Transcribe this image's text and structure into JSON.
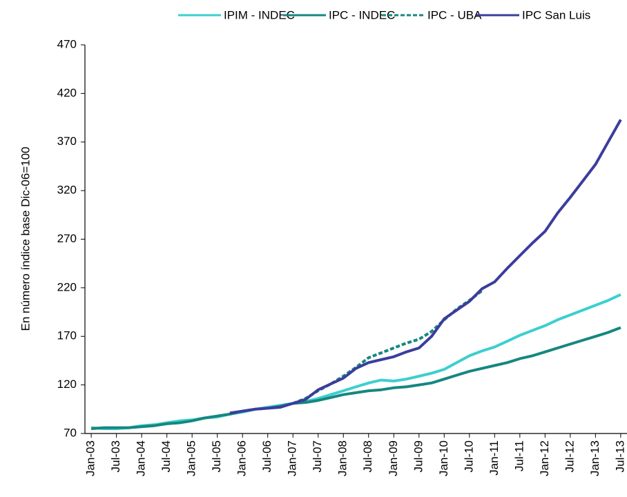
{
  "chart_data": {
    "type": "line",
    "y_label": "En número índice base Dic-06=100",
    "categories": [
      "Jan-03",
      null,
      "Jul-03",
      null,
      "Jan-04",
      null,
      "Jul-04",
      null,
      "Jan-05",
      null,
      "Jul-05",
      null,
      "Jan-06",
      null,
      "Jul-06",
      null,
      "Jan-07",
      null,
      "Jul-07",
      null,
      "Jan-08",
      null,
      "Jul-08",
      null,
      "Jan-09",
      null,
      "Jul-09",
      null,
      "Jan-10",
      null,
      "Jul-10",
      null,
      "Jan-11",
      null,
      "Jul-11",
      null,
      "Jan-12",
      null,
      "Jul-12",
      null,
      "Jan-13",
      null,
      "Jul-13"
    ],
    "series": [
      {
        "name": "IPIM - INDEC",
        "color": "#3ccfd0",
        "line_style": "solid",
        "values": [
          76,
          75,
          75,
          76,
          78,
          79,
          81,
          83,
          84,
          86,
          87,
          90,
          92,
          95,
          97,
          99,
          101,
          103,
          106,
          110,
          114,
          118,
          122,
          125,
          124,
          126,
          129,
          132,
          136,
          143,
          150,
          155,
          159,
          165,
          171,
          176,
          181,
          187,
          192,
          197,
          202,
          207,
          213
        ]
      },
      {
        "name": "IPC - INDEC",
        "color": "#16877f",
        "line_style": "solid",
        "values": [
          75,
          76,
          76,
          76,
          77,
          78,
          80,
          81,
          83,
          86,
          88,
          90,
          93,
          95,
          96,
          98,
          101,
          102,
          104,
          107,
          110,
          112,
          114,
          115,
          117,
          118,
          120,
          122,
          126,
          130,
          134,
          137,
          140,
          143,
          147,
          150,
          154,
          158,
          162,
          166,
          170,
          174,
          179
        ]
      },
      {
        "name": "IPC - UBA",
        "color": "#16877f",
        "line_style": "dashed",
        "values": [
          null,
          null,
          null,
          null,
          null,
          null,
          null,
          null,
          null,
          null,
          null,
          null,
          null,
          null,
          null,
          null,
          101,
          106,
          114,
          121,
          129,
          138,
          148,
          153,
          158,
          163,
          167,
          175,
          187,
          198,
          207,
          217,
          null,
          null,
          null,
          null,
          null,
          null,
          null,
          null,
          null,
          null,
          null
        ]
      },
      {
        "name": "IPC San Luis",
        "color": "#3b3d9c",
        "line_style": "solid",
        "values": [
          null,
          null,
          null,
          null,
          null,
          null,
          null,
          null,
          null,
          null,
          null,
          91,
          93,
          95,
          96,
          97,
          101,
          105,
          115,
          121,
          127,
          137,
          143,
          146,
          149,
          154,
          158,
          170,
          188,
          197,
          206,
          219,
          226,
          240,
          253,
          266,
          278,
          297,
          313,
          330,
          347,
          370,
          393
        ]
      }
    ],
    "ylim": [
      70,
      470
    ],
    "yticks": [
      70,
      120,
      170,
      220,
      270,
      320,
      370,
      420,
      470
    ],
    "grid": false,
    "legend": "top"
  }
}
